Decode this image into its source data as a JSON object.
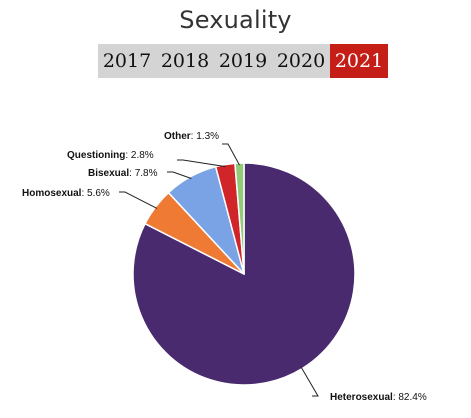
{
  "page": {
    "title": "Sexuality"
  },
  "year_tabs": [
    {
      "label": "2017",
      "active": false
    },
    {
      "label": "2018",
      "active": false
    },
    {
      "label": "2019",
      "active": false
    },
    {
      "label": "2020",
      "active": false
    },
    {
      "label": "2021",
      "active": true
    }
  ],
  "colors": {
    "tab_inactive_bg": "#d4d4d4",
    "tab_active_bg": "#c41e16"
  },
  "chart_data": {
    "type": "pie",
    "title": "",
    "slices": [
      {
        "category": "Heterosexual",
        "value": 82.4,
        "value_label": "82.4%",
        "color": "#4a2a6e"
      },
      {
        "category": "Homosexual",
        "value": 5.6,
        "value_label": "5.6%",
        "color": "#ef7a34"
      },
      {
        "category": "Bisexual",
        "value": 7.8,
        "value_label": "7.8%",
        "color": "#7aa3e6"
      },
      {
        "category": "Questioning",
        "value": 2.8,
        "value_label": "2.8%",
        "color": "#d0262a"
      },
      {
        "category": "Other",
        "value": 1.3,
        "value_label": "1.3%",
        "color": "#93c97a"
      }
    ],
    "start": "12 o'clock",
    "direction": "clockwise",
    "labels": "outside with leader lines",
    "legend": "none"
  }
}
